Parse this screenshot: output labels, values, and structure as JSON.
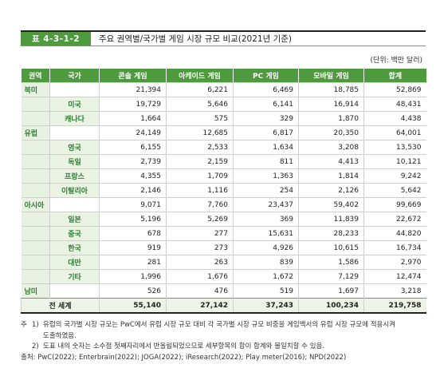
{
  "title": {
    "label": "표 4-3-1-2",
    "text": "주요 권역별/국가별 게임 시장 규모 비교(2021년 기준)"
  },
  "unit": "(단위: 백만 달러)",
  "table": {
    "headers": [
      "권역",
      "국가",
      "콘솔 게임",
      "아케이드 게임",
      "PC 게임",
      "모바일 게임",
      "합계"
    ],
    "rows": [
      {
        "region": "북미",
        "country": "",
        "cells": [
          "21,394",
          "6,221",
          "6,469",
          "18,785",
          "52,869"
        ]
      },
      {
        "region": "",
        "country": "미국",
        "cells": [
          "19,729",
          "5,646",
          "6,141",
          "16,914",
          "48,431"
        ]
      },
      {
        "region": "",
        "country": "캐나다",
        "cells": [
          "1,664",
          "575",
          "329",
          "1,870",
          "4,438"
        ]
      },
      {
        "region": "유럽",
        "country": "",
        "cells": [
          "24,149",
          "12,685",
          "6,817",
          "20,350",
          "64,001"
        ]
      },
      {
        "region": "",
        "country": "영국",
        "cells": [
          "6,155",
          "2,533",
          "1,634",
          "3,208",
          "13,530"
        ]
      },
      {
        "region": "",
        "country": "독일",
        "cells": [
          "2,739",
          "2,159",
          "811",
          "4,413",
          "10,121"
        ]
      },
      {
        "region": "",
        "country": "프랑스",
        "cells": [
          "4,355",
          "1,709",
          "1,363",
          "1,814",
          "9,242"
        ]
      },
      {
        "region": "",
        "country": "이탈리아",
        "cells": [
          "2,146",
          "1,116",
          "254",
          "2,126",
          "5,642"
        ]
      },
      {
        "region": "아시아",
        "country": "",
        "cells": [
          "9,071",
          "7,760",
          "23,437",
          "59,402",
          "99,669"
        ]
      },
      {
        "region": "",
        "country": "일본",
        "cells": [
          "5,196",
          "5,269",
          "369",
          "11,839",
          "22,672"
        ]
      },
      {
        "region": "",
        "country": "중국",
        "cells": [
          "678",
          "277",
          "15,631",
          "28,233",
          "44,820"
        ]
      },
      {
        "region": "",
        "country": "한국",
        "cells": [
          "919",
          "273",
          "4,926",
          "10,615",
          "16,734"
        ]
      },
      {
        "region": "",
        "country": "대만",
        "cells": [
          "281",
          "263",
          "839",
          "1,586",
          "2,970"
        ]
      },
      {
        "region": "",
        "country": "기타",
        "cells": [
          "1,996",
          "1,676",
          "1,672",
          "7,129",
          "12,474"
        ]
      },
      {
        "region": "남미",
        "country": "",
        "cells": [
          "526",
          "476",
          "519",
          "1,697",
          "3,218"
        ]
      }
    ],
    "total": {
      "label": "전 세계",
      "cells": [
        "55,140",
        "27,142",
        "37,243",
        "100,234",
        "219,758"
      ]
    }
  },
  "notes": {
    "mark": "주",
    "note1_num": "1)",
    "note1_a": "유럽의 국가별 시장 규모는 PwC에서 유럽 시장 규모 대비 각 국가별 시장 규모 비중을 게임백서의 유럽 시장 규모에 적용시켜",
    "note1_b": "도출하였음.",
    "note2_num": "2)",
    "note2": "도표 내의 숫자는 소수점 첫째자리에서 반올림되었으므로 세부항목의 합이 합계와 불일치할 수 있음.",
    "source": "출처: PwC(2022); Enterbrain(2022); JOGA(2022); iResearch(2022); Play meter(2016); NPD(2022)"
  }
}
